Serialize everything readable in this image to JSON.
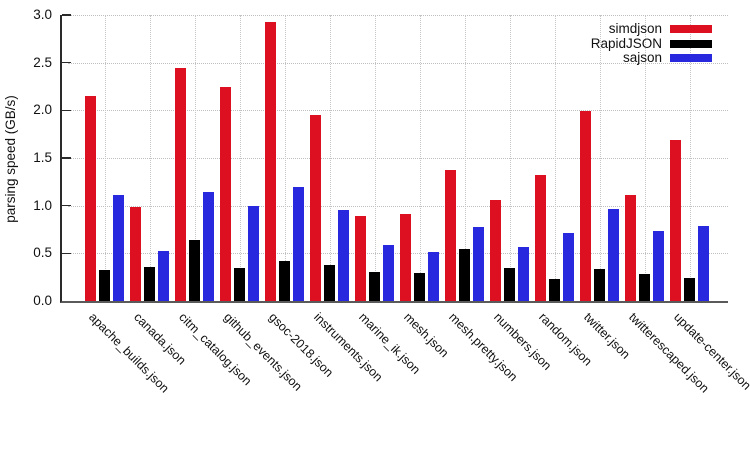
{
  "chart_data": {
    "type": "bar",
    "title": "",
    "xlabel": "",
    "ylabel": "parsing speed (GB/s)",
    "ylim": [
      0,
      3.0
    ],
    "ytick_labels": [
      "0.0",
      "0.5",
      "1.0",
      "1.5",
      "2.0",
      "2.5",
      "3.0"
    ],
    "grid": "dotted-both-axes",
    "legend_position": "top-right",
    "categories": [
      "apache_builds.json",
      "canada.json",
      "citm_catalog.json",
      "github_events.json",
      "gsoc-2018.json",
      "instruments.json",
      "marine_ik.json",
      "mesh.json",
      "mesh.pretty.json",
      "numbers.json",
      "random.json",
      "twitter.json",
      "twitterescaped.json",
      "update-center.json"
    ],
    "series": [
      {
        "name": "simdjson",
        "color": "#dc1020",
        "values": [
          2.15,
          0.99,
          2.44,
          2.25,
          2.93,
          1.95,
          0.89,
          0.91,
          1.37,
          1.06,
          1.32,
          1.99,
          1.11,
          1.69
        ]
      },
      {
        "name": "RapidJSON",
        "color": "#000000",
        "values": [
          0.33,
          0.36,
          0.64,
          0.35,
          0.42,
          0.38,
          0.3,
          0.29,
          0.55,
          0.35,
          0.23,
          0.34,
          0.28,
          0.24
        ]
      },
      {
        "name": "sajson",
        "color": "#2828df",
        "values": [
          1.11,
          0.52,
          1.14,
          1.0,
          1.2,
          0.95,
          0.59,
          0.51,
          0.78,
          0.57,
          0.71,
          0.96,
          0.73,
          0.79
        ]
      }
    ]
  },
  "colors": {
    "grid": "#c2c2c2",
    "y_axis": "#2a2a2a",
    "x_axis": "#5a5a5a",
    "text": "#111111"
  }
}
